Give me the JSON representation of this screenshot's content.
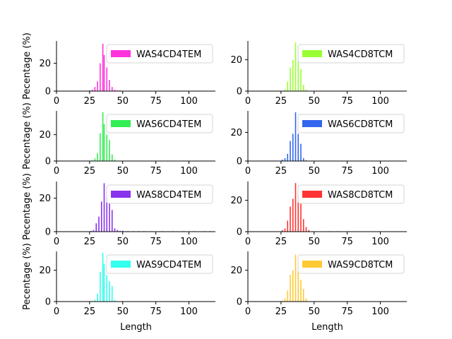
{
  "chart_data": [
    {
      "type": "bar",
      "legend": "WAS4CD4TEM",
      "color": "#ff33dd",
      "xlabel": "",
      "ylabel": "Pecentage (%)",
      "xlim": [
        0,
        120
      ],
      "ylim": [
        0,
        36
      ],
      "xticks": [
        0,
        25,
        50,
        75,
        100
      ],
      "yticks": [
        0,
        20
      ],
      "legend_position": "top-right",
      "x": [
        25,
        27,
        29,
        31,
        33,
        35,
        36,
        38,
        40,
        42,
        44,
        46,
        48
      ],
      "y": [
        0.5,
        1,
        3,
        7,
        20,
        34,
        26,
        17,
        8,
        3,
        1,
        0.5,
        0.5
      ]
    },
    {
      "type": "bar",
      "legend": "WAS4CD8TCM",
      "color": "#99ff33",
      "xlabel": "",
      "ylabel": "",
      "xlim": [
        0,
        120
      ],
      "ylim": [
        0,
        32
      ],
      "xticks": [
        0,
        25,
        50,
        75,
        100
      ],
      "yticks": [
        0,
        20
      ],
      "legend_position": "top-right",
      "x": [
        28,
        30,
        32,
        34,
        36,
        38,
        40,
        42,
        44,
        62,
        68
      ],
      "y": [
        1,
        6,
        15,
        20,
        31,
        22,
        14,
        4,
        1,
        0.3,
        0.3
      ]
    },
    {
      "type": "bar",
      "legend": "WAS6CD4TEM",
      "color": "#33ee55",
      "xlabel": "",
      "ylabel": "Pecentage (%)",
      "xlim": [
        0,
        120
      ],
      "ylim": [
        0,
        38
      ],
      "xticks": [
        0,
        25,
        50,
        75,
        100
      ],
      "yticks": [
        0,
        20
      ],
      "legend_position": "top-right",
      "x": [
        27,
        29,
        31,
        33,
        35,
        36,
        38,
        40,
        42,
        44,
        70
      ],
      "y": [
        0.5,
        2,
        6,
        21,
        37,
        28,
        20,
        16,
        5,
        1,
        0.3
      ]
    },
    {
      "type": "bar",
      "legend": "WAS6CD8TCM",
      "color": "#3366ee",
      "xlabel": "",
      "ylabel": "",
      "xlim": [
        0,
        120
      ],
      "ylim": [
        0,
        35
      ],
      "xticks": [
        0,
        25,
        50,
        75,
        100
      ],
      "yticks": [
        0,
        20
      ],
      "legend_position": "top-right",
      "x": [
        26,
        28,
        30,
        32,
        34,
        36,
        38,
        40,
        42,
        44
      ],
      "y": [
        1,
        2,
        5,
        14,
        19,
        34,
        19,
        12,
        2,
        0.5
      ]
    },
    {
      "type": "bar",
      "legend": "WAS8CD4TEM",
      "color": "#8833ee",
      "xlabel": "",
      "ylabel": "Pecentage (%)",
      "xlim": [
        0,
        120
      ],
      "ylim": [
        0,
        30
      ],
      "xticks": [
        0,
        25,
        50,
        75,
        100
      ],
      "yticks": [
        0,
        20
      ],
      "legend_position": "top-right",
      "x": [
        26,
        28,
        30,
        32,
        34,
        36,
        38,
        40,
        42,
        44,
        46,
        48,
        50,
        54,
        58,
        62,
        66,
        72,
        80,
        88,
        96,
        104,
        112,
        116
      ],
      "y": [
        0.5,
        1,
        5,
        9,
        18,
        29,
        21,
        17,
        13,
        2,
        1,
        0.5,
        0.5,
        0.3,
        0.3,
        0.3,
        0.3,
        0.3,
        0.3,
        0.3,
        0.3,
        0.3,
        0.3,
        0.3
      ]
    },
    {
      "type": "bar",
      "legend": "WAS8CD8TCM",
      "color": "#ff3333",
      "xlabel": "",
      "ylabel": "",
      "xlim": [
        0,
        120
      ],
      "ylim": [
        0,
        32
      ],
      "xticks": [
        0,
        25,
        50,
        75,
        100
      ],
      "yticks": [
        0,
        20
      ],
      "legend_position": "top-right",
      "x": [
        26,
        28,
        30,
        32,
        34,
        36,
        38,
        40,
        42,
        44,
        46,
        62,
        68
      ],
      "y": [
        1,
        2,
        7,
        16,
        21,
        31,
        24,
        18,
        8,
        3,
        1,
        0.3,
        0.3
      ]
    },
    {
      "type": "bar",
      "legend": "WAS9CD4TEM",
      "color": "#33ffee",
      "xlabel": "Length",
      "ylabel": "Pecentage (%)",
      "xlim": [
        0,
        120
      ],
      "ylim": [
        0,
        32
      ],
      "xticks": [
        0,
        25,
        50,
        75,
        100
      ],
      "yticks": [
        0,
        20
      ],
      "legend_position": "top-right",
      "x": [
        27,
        29,
        31,
        33,
        35,
        36,
        38,
        40,
        42,
        44
      ],
      "y": [
        0.5,
        1,
        5,
        19,
        31,
        24,
        17,
        13,
        10,
        1
      ]
    },
    {
      "type": "bar",
      "legend": "WAS9CD8TCM",
      "color": "#ffc933",
      "xlabel": "Length",
      "ylabel": "",
      "xlim": [
        0,
        120
      ],
      "ylim": [
        0,
        32
      ],
      "xticks": [
        0,
        25,
        50,
        75,
        100
      ],
      "yticks": [
        0,
        20
      ],
      "legend_position": "top-right",
      "x": [
        26,
        28,
        30,
        32,
        34,
        36,
        38,
        40,
        42,
        44
      ],
      "y": [
        0.5,
        2,
        7,
        17,
        20,
        30,
        22,
        14,
        8,
        2
      ]
    }
  ]
}
